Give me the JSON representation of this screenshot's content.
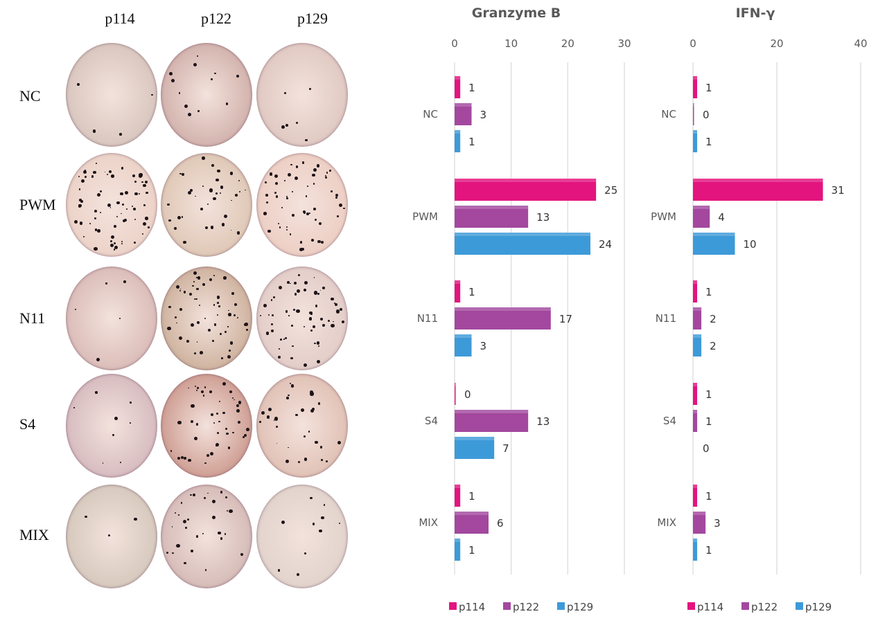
{
  "photo_panel": {
    "columns": [
      "p114",
      "p122",
      "p129"
    ],
    "rows": [
      "NC",
      "PWM",
      "N11",
      "S4",
      "MIX"
    ]
  },
  "legend": {
    "series": [
      {
        "name": "p114",
        "color": "#e3147e"
      },
      {
        "name": "p122",
        "color": "#a3489e"
      },
      {
        "name": "p129",
        "color": "#3d9ad8"
      }
    ]
  },
  "chart_data": [
    {
      "type": "bar",
      "orientation": "horizontal",
      "title": "Granzyme B",
      "categories": [
        "NC",
        "PWM",
        "N11",
        "S4",
        "MIX"
      ],
      "series": [
        {
          "name": "p114",
          "color": "#e3147e",
          "values": [
            1,
            25,
            1,
            0,
            1
          ]
        },
        {
          "name": "p122",
          "color": "#a3489e",
          "values": [
            3,
            13,
            17,
            13,
            6
          ]
        },
        {
          "name": "p129",
          "color": "#3d9ad8",
          "values": [
            1,
            24,
            3,
            7,
            1
          ]
        }
      ],
      "xlim": [
        0,
        30
      ],
      "xticks": [
        "0",
        "10",
        "20",
        "30"
      ],
      "xtick_values": [
        0,
        10,
        20,
        30
      ],
      "grid": true,
      "legend": "bottom",
      "xlabel": "",
      "ylabel": ""
    },
    {
      "type": "bar",
      "orientation": "horizontal",
      "title": "IFN-γ",
      "categories": [
        "NC",
        "PWM",
        "N11",
        "S4",
        "MIX"
      ],
      "series": [
        {
          "name": "p114",
          "color": "#e3147e",
          "values": [
            1,
            31,
            1,
            1,
            1
          ]
        },
        {
          "name": "p122",
          "color": "#a3489e",
          "values": [
            0,
            4,
            2,
            1,
            3
          ]
        },
        {
          "name": "p129",
          "color": "#3d9ad8",
          "values": [
            1,
            10,
            2,
            0,
            1
          ]
        }
      ],
      "xlim": [
        0,
        40
      ],
      "xticks": [
        "0",
        "20",
        "40"
      ],
      "xtick_values": [
        0,
        20,
        40
      ],
      "grid": true,
      "legend": "bottom",
      "xlabel": "",
      "ylabel": ""
    }
  ]
}
